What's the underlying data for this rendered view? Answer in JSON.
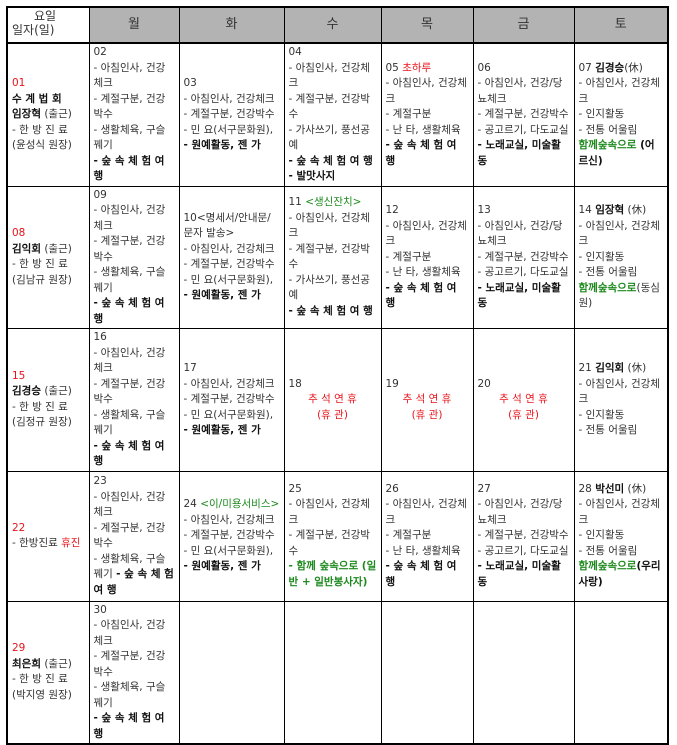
{
  "header": {
    "corner_top": "요일",
    "corner_bottom": "일자(일)",
    "days": [
      "월",
      "화",
      "수",
      "목",
      "금",
      "토"
    ]
  },
  "colors": {
    "red": "#e8141b",
    "green": "#1d8a1d",
    "header_bg": "#b3b3b3"
  },
  "weeks": [
    [
      [
        [
          [
            "01",
            "r"
          ]
        ],
        [
          [
            "수 계 법 회",
            "r b"
          ]
        ],
        [
          [
            "임장혁",
            "b"
          ],
          [
            " (출근)",
            ""
          ]
        ],
        [
          [
            "- 한 방 진 료",
            ""
          ]
        ],
        [
          [
            "(윤성식 원장)",
            ""
          ]
        ]
      ],
      [
        [
          [
            "02",
            ""
          ]
        ],
        [
          [
            "- 아침인사, 건강체크",
            ""
          ]
        ],
        [
          [
            "- 계절구분, 건강박수",
            ""
          ]
        ],
        [
          [
            "- 생활체육, 구슬꿰기",
            ""
          ]
        ],
        [
          [
            "- 숲 속 체 험 여 행",
            "b"
          ]
        ]
      ],
      [
        [
          [
            "03",
            ""
          ]
        ],
        [
          [
            "- 아침인사, 건강체크",
            ""
          ]
        ],
        [
          [
            "- 계절구분, 건강박수",
            ""
          ]
        ],
        [
          [
            "- 민 요(서구문화원),",
            ""
          ]
        ],
        [
          [
            "- 원예활동, 젠 가",
            "b"
          ]
        ]
      ],
      [
        [
          [
            "04",
            ""
          ]
        ],
        [
          [
            "- 아침인사, 건강체크",
            ""
          ]
        ],
        [
          [
            "- 계절구분, 건강박수",
            ""
          ]
        ],
        [
          [
            "- 가사쓰기, 풍선공예",
            ""
          ]
        ],
        [
          [
            "- 숲 속 체 험 여 행",
            "b"
          ]
        ],
        [
          [
            "- 발맛사지",
            "b"
          ]
        ]
      ],
      [
        [
          [
            "05 ",
            ""
          ],
          [
            "초하루",
            "r"
          ]
        ],
        [
          [
            "- 아침인사, 건강체크",
            ""
          ]
        ],
        [
          [
            "- 계절구분",
            ""
          ]
        ],
        [
          [
            "- 난 타, 생활체육",
            ""
          ]
        ],
        [
          [
            "- 숲 속 체 험 여 행",
            "b"
          ]
        ]
      ],
      [
        [
          [
            "06",
            ""
          ]
        ],
        [
          [
            "- 아침인사, 건강/당뇨체크",
            ""
          ]
        ],
        [
          [
            "- 계절구분, 건강박수",
            ""
          ]
        ],
        [
          [
            "- 공고르기, 다도교실",
            ""
          ]
        ],
        [
          [
            "- 노래교실, 미술활동",
            "b"
          ]
        ]
      ],
      [
        [
          [
            "07 ",
            ""
          ],
          [
            "김경승",
            "b"
          ],
          [
            "(休)",
            ""
          ]
        ],
        [
          [
            "- 아침인사, 건강체크",
            ""
          ]
        ],
        [
          [
            "- 인지활동",
            ""
          ]
        ],
        [
          [
            "- 전통 어울림",
            ""
          ]
        ],
        [
          [
            "함께숲속으로",
            "g"
          ],
          [
            " (어르신)",
            "b"
          ]
        ]
      ]
    ],
    [
      [
        [
          [
            "08",
            "r"
          ]
        ],
        [
          [
            " ",
            ""
          ]
        ],
        [
          [
            "김익회",
            "b"
          ],
          [
            " (출근)",
            ""
          ]
        ],
        [
          [
            "- 한 방 진 료",
            ""
          ]
        ],
        [
          [
            "(김남규 원장)",
            ""
          ]
        ]
      ],
      [
        [
          [
            "09",
            ""
          ]
        ],
        [
          [
            "- 아침인사, 건강체크",
            ""
          ]
        ],
        [
          [
            "- 계절구분, 건강박수",
            ""
          ]
        ],
        [
          [
            "- 생활체육, 구슬꿰기",
            ""
          ]
        ],
        [
          [
            "- 숲 속 체 험 여 행",
            "b"
          ]
        ]
      ],
      [
        [
          [
            "10<명세서/안내문/문자 발송>",
            ""
          ]
        ],
        [
          [
            "- 아침인사, 건강체크",
            ""
          ]
        ],
        [
          [
            "- 계절구분, 건강박수",
            ""
          ]
        ],
        [
          [
            "- 민 요(서구문화원),",
            ""
          ]
        ],
        [
          [
            "- 원예활동, 젠 가",
            "b"
          ]
        ]
      ],
      [
        [
          [
            "11 ",
            ""
          ],
          [
            "<생신잔치>",
            "g2"
          ]
        ],
        [
          [
            "- 아침인사, 건강체크",
            ""
          ]
        ],
        [
          [
            "- 계절구분, 건강박수",
            ""
          ]
        ],
        [
          [
            "- 가사쓰기, 풍선공예",
            ""
          ]
        ],
        [
          [
            "- 숲 속 체 험 여 행",
            "b"
          ]
        ]
      ],
      [
        [
          [
            "12",
            ""
          ]
        ],
        [
          [
            "- 아침인사, 건강체크",
            ""
          ]
        ],
        [
          [
            "- 계절구분",
            ""
          ]
        ],
        [
          [
            "- 난 타, 생활체육",
            ""
          ]
        ],
        [
          [
            "- 숲 속 체 험 여 행",
            "b"
          ]
        ]
      ],
      [
        [
          [
            "13",
            ""
          ]
        ],
        [
          [
            "- 아침인사, 건강/당뇨체크",
            ""
          ]
        ],
        [
          [
            "- 계절구분, 건강박수",
            ""
          ]
        ],
        [
          [
            "- 공고르기, 다도교실",
            ""
          ]
        ],
        [
          [
            "- 노래교실, 미술활동",
            "b"
          ]
        ]
      ],
      [
        [
          [
            "14 ",
            ""
          ],
          [
            "임장혁",
            "b"
          ],
          [
            " (休)",
            ""
          ]
        ],
        [
          [
            "- 아침인사, 건강체크",
            ""
          ]
        ],
        [
          [
            "- 인지활동",
            ""
          ]
        ],
        [
          [
            "- 전통 어울림",
            ""
          ]
        ],
        [
          [
            "함께숲속으로",
            "g"
          ],
          [
            "(동심원)",
            ""
          ]
        ]
      ]
    ],
    [
      [
        [
          [
            "15",
            "r"
          ]
        ],
        [
          [
            "김경승",
            "b"
          ],
          [
            " (출근)",
            ""
          ]
        ],
        [
          [
            "- 한 방 진 료",
            ""
          ]
        ],
        [
          [
            "(김정규 원장)",
            ""
          ]
        ]
      ],
      [
        [
          [
            "16",
            ""
          ]
        ],
        [
          [
            "- 아침인사, 건강체크",
            ""
          ]
        ],
        [
          [
            "- 계절구분, 건강박수",
            ""
          ]
        ],
        [
          [
            "- 생활체육, 구슬꿰기",
            ""
          ]
        ],
        [
          [
            "- 숲 속 체 험 여 행",
            "b"
          ]
        ]
      ],
      [
        [
          [
            "17",
            ""
          ]
        ],
        [
          [
            "- 아침인사, 건강체크",
            ""
          ]
        ],
        [
          [
            "- 계절구분, 건강박수",
            ""
          ]
        ],
        [
          [
            "- 민 요(서구문화원),",
            ""
          ]
        ],
        [
          [
            "- 원예활동, 젠 가",
            "b"
          ]
        ]
      ],
      [
        [
          [
            "18",
            ""
          ]
        ],
        [
          [
            " ",
            ""
          ]
        ],
        [
          [
            "추 석 연 휴",
            "r c"
          ]
        ],
        [
          [
            " ",
            ""
          ]
        ],
        [
          [
            "(휴 관)",
            "r c"
          ]
        ]
      ],
      [
        [
          [
            "19",
            ""
          ]
        ],
        [
          [
            " ",
            ""
          ]
        ],
        [
          [
            "추 석 연 휴",
            "r c"
          ]
        ],
        [
          [
            " ",
            ""
          ]
        ],
        [
          [
            "(휴 관)",
            "r c"
          ]
        ]
      ],
      [
        [
          [
            "20",
            ""
          ]
        ],
        [
          [
            " ",
            ""
          ]
        ],
        [
          [
            "추 석 연 휴",
            "r c"
          ]
        ],
        [
          [
            " ",
            ""
          ]
        ],
        [
          [
            "(휴 관)",
            "r c"
          ]
        ]
      ],
      [
        [
          [
            "21 ",
            ""
          ],
          [
            "김익회",
            "b"
          ],
          [
            " (休)",
            ""
          ]
        ],
        [
          [
            "- 아침인사, 건강체크",
            ""
          ]
        ],
        [
          [
            "- 인지활동",
            ""
          ]
        ],
        [
          [
            "- 전통 어울림",
            ""
          ]
        ]
      ]
    ],
    [
      [
        [
          [
            "22",
            "r"
          ]
        ],
        [
          [
            "- 한방진료 ",
            ""
          ],
          [
            "휴진",
            "r"
          ]
        ]
      ],
      [
        [
          [
            "23",
            ""
          ]
        ],
        [
          [
            "- 아침인사, 건강체크",
            ""
          ]
        ],
        [
          [
            "- 계절구분, 건강박수",
            ""
          ]
        ],
        [
          [
            "- 생활체육, 구슬꿰기 ",
            ""
          ],
          [
            "- 숲 속 체 험 여 행",
            "b"
          ]
        ]
      ],
      [
        [
          [
            "24 ",
            ""
          ],
          [
            "<이/미용서비스>",
            "g2"
          ]
        ],
        [
          [
            "- 아침인사, 건강체크",
            ""
          ]
        ],
        [
          [
            "- 계절구분, 건강박수",
            ""
          ]
        ],
        [
          [
            "- 민 요(서구문화원),",
            ""
          ]
        ],
        [
          [
            "- 원예활동, 젠 가",
            "b"
          ]
        ]
      ],
      [
        [
          [
            "25",
            ""
          ]
        ],
        [
          [
            "- 아침인사, 건강체크",
            ""
          ]
        ],
        [
          [
            "- 계절구분, 건강박수",
            ""
          ]
        ],
        [
          [
            "- 함께 숲속으로 (일반 + 일반봉사자)",
            "g"
          ]
        ]
      ],
      [
        [
          [
            "26",
            ""
          ]
        ],
        [
          [
            "- 아침인사, 건강체크",
            ""
          ]
        ],
        [
          [
            "- 계절구분",
            ""
          ]
        ],
        [
          [
            "- 난 타, 생활체육",
            ""
          ]
        ],
        [
          [
            "- 숲 속 체 험 여 행",
            "b"
          ]
        ]
      ],
      [
        [
          [
            "27",
            ""
          ]
        ],
        [
          [
            "- 아침인사, 건강/당뇨체크",
            ""
          ]
        ],
        [
          [
            "- 계절구분, 건강박수",
            ""
          ]
        ],
        [
          [
            "- 공고르기, 다도교실",
            ""
          ]
        ],
        [
          [
            "- 노래교실, 미술활동",
            "b"
          ]
        ]
      ],
      [
        [
          [
            "28 ",
            ""
          ],
          [
            "박선미",
            "b"
          ],
          [
            " (休)",
            ""
          ]
        ],
        [
          [
            "- 아침인사, 건강체크",
            ""
          ]
        ],
        [
          [
            "- 인지활동",
            ""
          ]
        ],
        [
          [
            "- 전통 어울림",
            ""
          ]
        ],
        [
          [
            "함께숲속으로",
            "g"
          ],
          [
            "(우리사랑)",
            "b"
          ]
        ]
      ]
    ],
    [
      [
        [
          [
            "29",
            "r"
          ]
        ],
        [
          [
            "최은희",
            "b"
          ],
          [
            " (출근)",
            ""
          ]
        ],
        [
          [
            "- 한 방 진 료",
            ""
          ]
        ],
        [
          [
            "(박지영 원장)",
            ""
          ]
        ]
      ],
      [
        [
          [
            "30",
            ""
          ]
        ],
        [
          [
            "- 아침인사, 건강체크",
            ""
          ]
        ],
        [
          [
            "- 계절구분, 건강박수",
            ""
          ]
        ],
        [
          [
            "- 생활체육, 구슬꿰기",
            ""
          ]
        ],
        [
          [
            "- 숲 속 체 험 여 행",
            "b"
          ]
        ]
      ],
      [],
      [],
      [],
      [],
      []
    ]
  ]
}
